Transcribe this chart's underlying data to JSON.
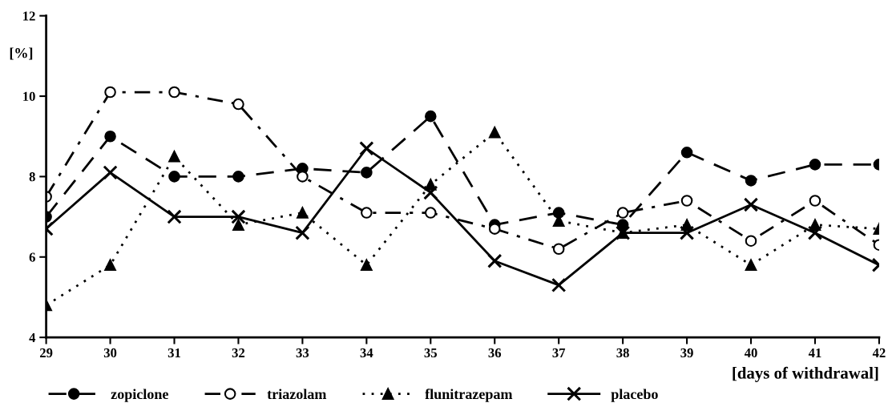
{
  "chart_data": {
    "type": "line",
    "xlabel": "[days of withdrawal]",
    "ylabel": "[%]",
    "x": [
      29,
      30,
      31,
      32,
      33,
      34,
      35,
      36,
      37,
      38,
      39,
      40,
      41,
      42
    ],
    "xlim": [
      29,
      42
    ],
    "xticks": [
      29,
      30,
      31,
      32,
      33,
      34,
      35,
      36,
      37,
      38,
      39,
      40,
      41,
      42
    ],
    "ylim": [
      4,
      12
    ],
    "yticks": [
      4,
      6,
      8,
      10,
      12
    ],
    "grid": false,
    "legend": "bottom",
    "series": [
      {
        "name": "zopiclone",
        "color": "#000000",
        "marker": "circle",
        "line_style": "dashed",
        "values": [
          7.0,
          9.0,
          8.0,
          8.0,
          8.2,
          8.1,
          9.5,
          6.8,
          7.1,
          6.8,
          8.6,
          7.9,
          8.3,
          8.3
        ]
      },
      {
        "name": "triazolam",
        "color": "#000000",
        "marker": "open circle",
        "line_style": "dashdot",
        "values": [
          7.5,
          10.1,
          10.1,
          9.8,
          8.0,
          7.1,
          7.1,
          6.7,
          6.2,
          7.1,
          7.4,
          6.4,
          7.4,
          6.3
        ]
      },
      {
        "name": "flunitrazepam",
        "color": "#000000",
        "marker": "triangle",
        "line_style": "dotted",
        "values": [
          4.8,
          5.8,
          8.5,
          6.8,
          7.1,
          5.8,
          7.8,
          9.1,
          6.9,
          6.6,
          6.8,
          5.8,
          6.8,
          6.7
        ]
      },
      {
        "name": "placebo",
        "color": "#000000",
        "marker": "cross",
        "line_style": "solid",
        "values": [
          6.7,
          8.1,
          7.0,
          7.0,
          6.6,
          8.7,
          7.6,
          5.9,
          5.3,
          6.6,
          6.6,
          7.3,
          6.6,
          5.8
        ]
      }
    ]
  }
}
